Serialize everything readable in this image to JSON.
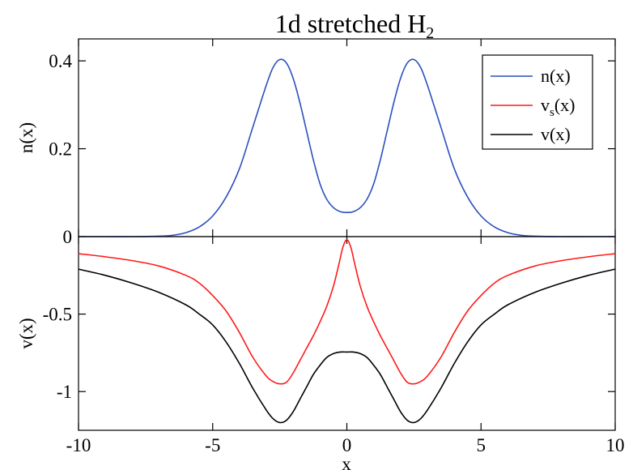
{
  "chart_data": {
    "type": "line",
    "title": "1d stretched H",
    "title_subscript": "2",
    "xlabel": "x",
    "xlim": [
      -10,
      10
    ],
    "x_ticks": [
      -10,
      -5,
      0,
      5,
      10
    ],
    "x_tick_labels": [
      "-10",
      "-5",
      "0",
      "5",
      "10"
    ],
    "grid": false,
    "panels": [
      {
        "ylabel": "n(x)",
        "ylim": [
          0,
          0.45
        ],
        "y_ticks": [
          0,
          0.2,
          0.4
        ],
        "y_tick_labels": [
          "0",
          "0.2",
          "0.4"
        ],
        "legend_position": "top-right",
        "legend": [
          {
            "label": "n(x)",
            "color": "#2b4fbf"
          },
          {
            "label_main": "v",
            "label_sub": "s",
            "label_tail": "(x)",
            "color": "#ff1a1a"
          },
          {
            "label": "v(x)",
            "color": "#000000"
          }
        ],
        "series": [
          {
            "name": "n(x)",
            "color": "#2b4fbf",
            "x": [
              -10,
              -9,
              -8,
              -7,
              -6.5,
              -6,
              -5.5,
              -5,
              -4.5,
              -4,
              -3.5,
              -3,
              -2.75,
              -2.5,
              -2.25,
              -2,
              -1.75,
              -1.5,
              -1.25,
              -1,
              -0.75,
              -0.5,
              -0.25,
              0,
              0.25,
              0.5,
              0.75,
              1,
              1.25,
              1.5,
              1.75,
              2,
              2.25,
              2.5,
              2.75,
              3,
              3.5,
              4,
              4.5,
              5,
              5.5,
              6,
              6.5,
              7,
              8,
              9,
              10
            ],
            "y": [
              0,
              0,
              0,
              0.001,
              0.003,
              0.009,
              0.022,
              0.047,
              0.09,
              0.155,
              0.25,
              0.345,
              0.385,
              0.403,
              0.395,
              0.36,
              0.305,
              0.24,
              0.175,
              0.12,
              0.085,
              0.066,
              0.057,
              0.055,
              0.057,
              0.066,
              0.085,
              0.12,
              0.175,
              0.24,
              0.305,
              0.36,
              0.395,
              0.403,
              0.385,
              0.345,
              0.25,
              0.155,
              0.09,
              0.047,
              0.022,
              0.009,
              0.003,
              0.001,
              0,
              0,
              0
            ]
          }
        ]
      },
      {
        "ylabel": "v(x)",
        "ylim": [
          -1.25,
          0
        ],
        "y_ticks": [
          -1,
          -0.5
        ],
        "y_tick_labels": [
          "-1",
          "-0.5"
        ],
        "series": [
          {
            "name": "v_s(x)",
            "color": "#ff1a1a",
            "x": [
              -10,
              -9,
              -8,
              -7,
              -6,
              -5.5,
              -5,
              -4.5,
              -4,
              -3.5,
              -3,
              -2.75,
              -2.5,
              -2.25,
              -2,
              -1.75,
              -1.5,
              -1.25,
              -1,
              -0.75,
              -0.5,
              -0.3,
              -0.15,
              0,
              0.15,
              0.3,
              0.5,
              0.75,
              1,
              1.25,
              1.5,
              1.75,
              2,
              2.25,
              2.5,
              2.75,
              3,
              3.5,
              4,
              4.5,
              5,
              5.5,
              6,
              7,
              8,
              9,
              10
            ],
            "y": [
              -0.11,
              -0.13,
              -0.155,
              -0.19,
              -0.25,
              -0.3,
              -0.38,
              -0.48,
              -0.62,
              -0.78,
              -0.9,
              -0.935,
              -0.95,
              -0.94,
              -0.88,
              -0.8,
              -0.72,
              -0.64,
              -0.55,
              -0.45,
              -0.32,
              -0.18,
              -0.07,
              -0.02,
              -0.07,
              -0.18,
              -0.32,
              -0.45,
              -0.55,
              -0.64,
              -0.72,
              -0.8,
              -0.88,
              -0.94,
              -0.95,
              -0.935,
              -0.9,
              -0.78,
              -0.62,
              -0.48,
              -0.38,
              -0.3,
              -0.25,
              -0.19,
              -0.155,
              -0.13,
              -0.11
            ]
          },
          {
            "name": "v(x)",
            "color": "#000000",
            "x": [
              -10,
              -9,
              -8,
              -7,
              -6,
              -5.5,
              -5,
              -4.5,
              -4,
              -3.5,
              -3,
              -2.75,
              -2.5,
              -2.25,
              -2,
              -1.75,
              -1.5,
              -1.25,
              -1,
              -0.75,
              -0.5,
              -0.25,
              0,
              0.25,
              0.5,
              0.75,
              1,
              1.25,
              1.5,
              1.75,
              2,
              2.25,
              2.5,
              2.75,
              3,
              3.5,
              4,
              4.5,
              5,
              5.5,
              6,
              7,
              8,
              9,
              10
            ],
            "y": [
              -0.21,
              -0.25,
              -0.3,
              -0.36,
              -0.44,
              -0.5,
              -0.57,
              -0.68,
              -0.82,
              -0.98,
              -1.12,
              -1.175,
              -1.2,
              -1.185,
              -1.13,
              -1.05,
              -0.97,
              -0.89,
              -0.83,
              -0.78,
              -0.755,
              -0.745,
              -0.745,
              -0.745,
              -0.755,
              -0.78,
              -0.83,
              -0.89,
              -0.97,
              -1.05,
              -1.13,
              -1.185,
              -1.2,
              -1.175,
              -1.12,
              -0.98,
              -0.82,
              -0.68,
              -0.57,
              -0.5,
              -0.44,
              -0.36,
              -0.3,
              -0.25,
              -0.21
            ]
          }
        ]
      }
    ]
  }
}
